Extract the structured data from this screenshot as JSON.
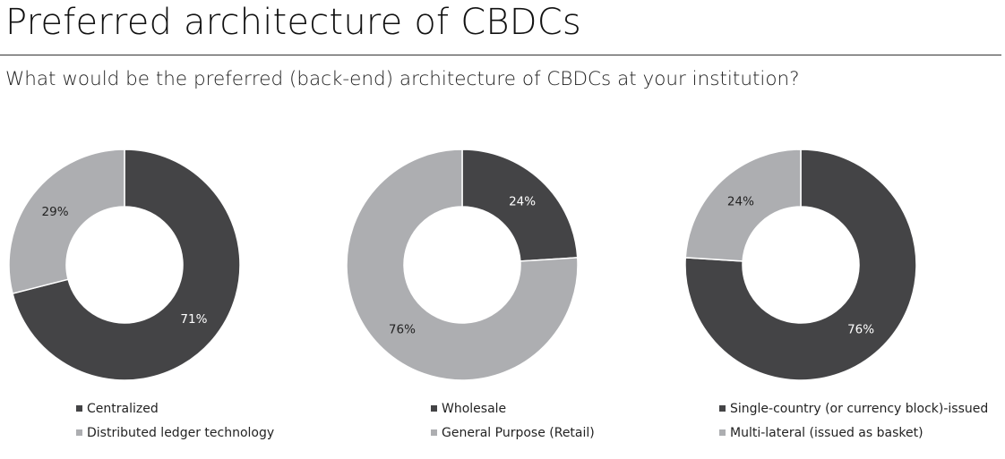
{
  "header": {
    "title": "Preferred architecture of CBDCs",
    "subtitle": "What would be the preferred (back-end) architecture of CBDCs at your institution?"
  },
  "colors": {
    "dark": "#444446",
    "light": "#adaeb1",
    "label_on_dark": "#ffffff",
    "label_on_light": "#222222"
  },
  "chart_data": [
    {
      "type": "pie",
      "donut": true,
      "legend_position": "bottom",
      "slices": [
        {
          "label": "Centralized",
          "value": 71,
          "display": "71%",
          "color": "#444446"
        },
        {
          "label": "Distributed ledger technology",
          "value": 29,
          "display": "29%",
          "color": "#adaeb1"
        }
      ]
    },
    {
      "type": "pie",
      "donut": true,
      "legend_position": "bottom",
      "slices": [
        {
          "label": "Wholesale",
          "value": 24,
          "display": "24%",
          "color": "#444446"
        },
        {
          "label": "General Purpose (Retail)",
          "value": 76,
          "display": "76%",
          "color": "#adaeb1"
        }
      ]
    },
    {
      "type": "pie",
      "donut": true,
      "legend_position": "bottom",
      "slices": [
        {
          "label": "Single-country (or currency block)-issued",
          "value": 76,
          "display": "76%",
          "color": "#444446"
        },
        {
          "label": "Multi-lateral (issued as basket)",
          "value": 24,
          "display": "24%",
          "color": "#adaeb1"
        }
      ]
    }
  ]
}
